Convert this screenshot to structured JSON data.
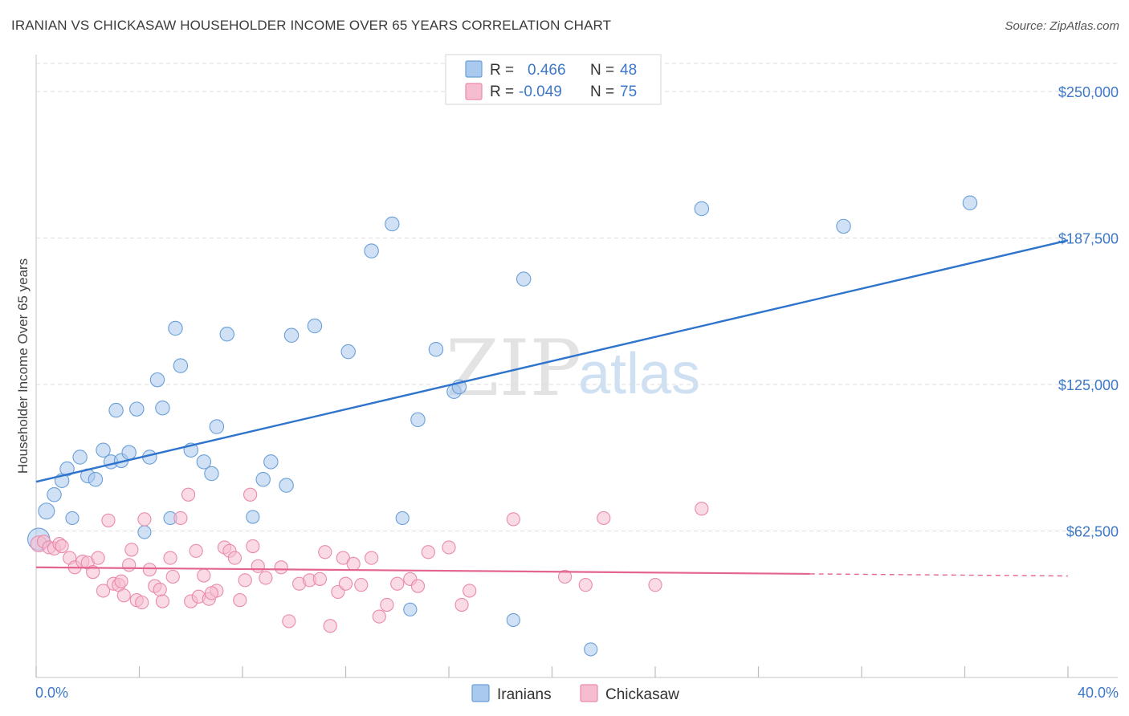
{
  "title": "IRANIAN VS CHICKASAW HOUSEHOLDER INCOME OVER 65 YEARS CORRELATION CHART",
  "source": "Source: ZipAtlas.com",
  "watermark": {
    "zip": "ZIP",
    "atlas": "atlas"
  },
  "colors": {
    "blue_fill": "#a9c9ee",
    "blue_stroke": "#6a9fd8",
    "blue_line": "#2f74cc",
    "pink_fill": "#f6bcd0",
    "pink_stroke": "#e98aac",
    "pink_line": "#e3648d",
    "grid": "#dedede",
    "axis_text": "#3d78c8"
  },
  "legend_top": [
    {
      "series": "Iranians",
      "r_label": "R =",
      "r_value": "0.466",
      "n_label": "N =",
      "n_value": "48"
    },
    {
      "series": "Chickasaw",
      "r_label": "R =",
      "r_value": "-0.049",
      "n_label": "N =",
      "n_value": "75"
    }
  ],
  "chart_data": {
    "type": "scatter",
    "title": "IRANIAN VS CHICKASAW HOUSEHOLDER INCOME OVER 65 YEARS CORRELATION CHART",
    "xlabel": "",
    "ylabel": "Householder Income Over 65 years",
    "xlim": [
      0,
      40
    ],
    "ylim": [
      0,
      262000
    ],
    "x_tick_labels": [
      "0.0%",
      "40.0%"
    ],
    "y_ticks": [
      62500,
      125000,
      187500,
      250000
    ],
    "y_tick_labels": [
      "$62,500",
      "$125,000",
      "$187,500",
      "$250,000"
    ],
    "legend": [
      "Iranians",
      "Chickasaw"
    ],
    "series": [
      {
        "name": "Iranians",
        "trend": {
          "x0": 0,
          "y0": 83500,
          "x1": 40,
          "y1": 186500
        },
        "points": [
          [
            0.1,
            59000,
            22
          ],
          [
            0.4,
            71000,
            16
          ],
          [
            0.7,
            78000,
            14
          ],
          [
            1.0,
            84000,
            14
          ],
          [
            1.2,
            89000,
            14
          ],
          [
            1.4,
            68000,
            13
          ],
          [
            1.7,
            94000,
            14
          ],
          [
            2.0,
            86000,
            14
          ],
          [
            2.3,
            84500,
            14
          ],
          [
            2.6,
            97000,
            14
          ],
          [
            2.9,
            92000,
            14
          ],
          [
            3.1,
            114000,
            14
          ],
          [
            3.3,
            92500,
            14
          ],
          [
            3.6,
            96000,
            14
          ],
          [
            3.9,
            114500,
            14
          ],
          [
            4.2,
            62000,
            13
          ],
          [
            4.4,
            94000,
            14
          ],
          [
            4.7,
            127000,
            14
          ],
          [
            4.9,
            115000,
            14
          ],
          [
            5.2,
            68000,
            13
          ],
          [
            5.4,
            149000,
            14
          ],
          [
            5.6,
            133000,
            14
          ],
          [
            6.0,
            97000,
            14
          ],
          [
            6.5,
            92000,
            14
          ],
          [
            6.8,
            87000,
            14
          ],
          [
            7.0,
            107000,
            14
          ],
          [
            7.4,
            146500,
            14
          ],
          [
            8.4,
            68500,
            13
          ],
          [
            8.8,
            84500,
            14
          ],
          [
            9.1,
            92000,
            14
          ],
          [
            9.7,
            82000,
            14
          ],
          [
            9.9,
            146000,
            14
          ],
          [
            10.8,
            150000,
            14
          ],
          [
            12.1,
            139000,
            14
          ],
          [
            13.0,
            182000,
            14
          ],
          [
            13.8,
            193500,
            14
          ],
          [
            14.2,
            68000,
            13
          ],
          [
            14.5,
            29000,
            13
          ],
          [
            14.8,
            110000,
            14
          ],
          [
            15.5,
            140000,
            14
          ],
          [
            16.2,
            122000,
            14
          ],
          [
            16.4,
            124000,
            14
          ],
          [
            18.5,
            24500,
            13
          ],
          [
            18.9,
            170000,
            14
          ],
          [
            21.5,
            12000,
            13
          ],
          [
            25.8,
            200000,
            14
          ],
          [
            31.3,
            192500,
            14
          ],
          [
            36.2,
            202500,
            14
          ]
        ]
      },
      {
        "name": "Chickasaw",
        "trend": {
          "x0": 0,
          "y0": 47000,
          "x1": 30,
          "y1": 44200,
          "dash_x1": 40,
          "dash_y1": 43300
        },
        "points": [
          [
            0.1,
            57000,
            16
          ],
          [
            0.3,
            58000,
            13
          ],
          [
            0.5,
            55500,
            13
          ],
          [
            0.7,
            55000,
            13
          ],
          [
            0.9,
            57000,
            13
          ],
          [
            1.0,
            56000,
            13
          ],
          [
            1.3,
            51000,
            13
          ],
          [
            1.5,
            47000,
            13
          ],
          [
            1.8,
            49500,
            13
          ],
          [
            2.0,
            49000,
            13
          ],
          [
            2.2,
            45000,
            13
          ],
          [
            2.4,
            51000,
            13
          ],
          [
            2.6,
            37000,
            13
          ],
          [
            2.8,
            67000,
            13
          ],
          [
            3.0,
            40000,
            13
          ],
          [
            3.2,
            39500,
            13
          ],
          [
            3.4,
            35000,
            13
          ],
          [
            3.6,
            48000,
            13
          ],
          [
            3.7,
            54500,
            13
          ],
          [
            3.9,
            33000,
            13
          ],
          [
            4.1,
            32000,
            13
          ],
          [
            4.2,
            67500,
            13
          ],
          [
            4.4,
            46000,
            13
          ],
          [
            4.6,
            39000,
            13
          ],
          [
            4.8,
            37500,
            13
          ],
          [
            4.9,
            32500,
            13
          ],
          [
            5.2,
            51000,
            13
          ],
          [
            5.3,
            43000,
            13
          ],
          [
            5.6,
            68000,
            13
          ],
          [
            5.9,
            78000,
            13
          ],
          [
            6.0,
            32500,
            13
          ],
          [
            6.2,
            54000,
            13
          ],
          [
            6.3,
            34500,
            13
          ],
          [
            6.5,
            43500,
            13
          ],
          [
            6.7,
            33500,
            13
          ],
          [
            7.0,
            37000,
            13
          ],
          [
            7.3,
            55500,
            13
          ],
          [
            7.5,
            54000,
            13
          ],
          [
            7.7,
            51000,
            13
          ],
          [
            7.9,
            33000,
            13
          ],
          [
            8.1,
            41500,
            13
          ],
          [
            8.3,
            78000,
            13
          ],
          [
            8.4,
            56000,
            13
          ],
          [
            8.6,
            47500,
            13
          ],
          [
            8.9,
            42500,
            13
          ],
          [
            9.5,
            47000,
            13
          ],
          [
            9.8,
            24000,
            13
          ],
          [
            10.2,
            40000,
            13
          ],
          [
            10.6,
            41500,
            13
          ],
          [
            11.0,
            42000,
            13
          ],
          [
            11.2,
            53500,
            13
          ],
          [
            11.4,
            22000,
            13
          ],
          [
            11.7,
            36500,
            13
          ],
          [
            11.9,
            51000,
            13
          ],
          [
            12.0,
            40000,
            13
          ],
          [
            12.3,
            48500,
            13
          ],
          [
            12.6,
            39500,
            13
          ],
          [
            13.0,
            51000,
            13
          ],
          [
            13.3,
            26000,
            13
          ],
          [
            13.6,
            31000,
            13
          ],
          [
            14.0,
            40000,
            13
          ],
          [
            14.5,
            42000,
            13
          ],
          [
            15.2,
            53500,
            13
          ],
          [
            16.0,
            55500,
            13
          ],
          [
            16.5,
            31000,
            13
          ],
          [
            16.8,
            37000,
            13
          ],
          [
            18.5,
            67500,
            13
          ],
          [
            20.5,
            43000,
            13
          ],
          [
            21.3,
            39500,
            13
          ],
          [
            22.0,
            68000,
            13
          ],
          [
            24.0,
            39500,
            13
          ],
          [
            25.8,
            72000,
            13
          ],
          [
            14.8,
            39000,
            13
          ],
          [
            6.8,
            36000,
            13
          ],
          [
            3.3,
            41000,
            13
          ]
        ]
      }
    ]
  }
}
